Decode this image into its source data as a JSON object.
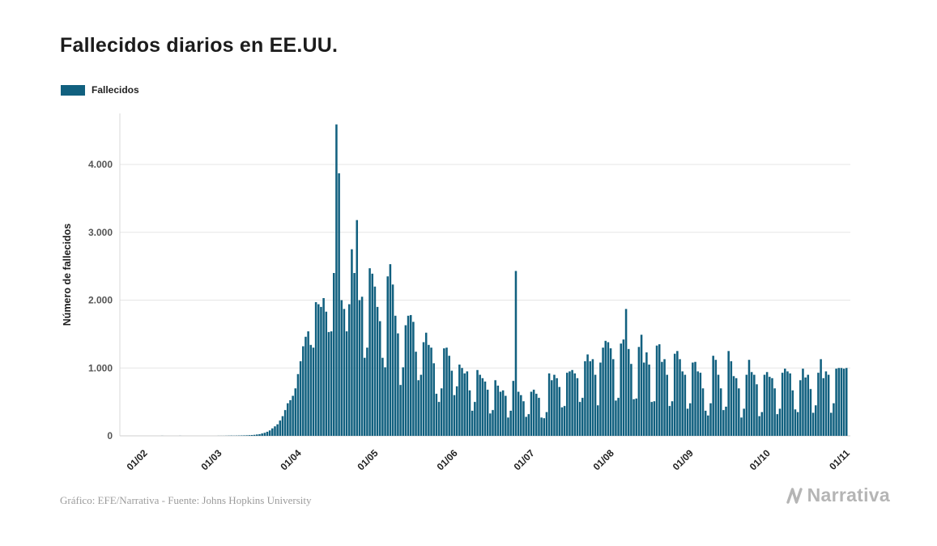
{
  "page": {
    "title": "Fallecidos diarios en EE.UU.",
    "footer_credit": "Gráfico: EFE/Narrativa - Fuente: Johns Hopkins University",
    "brand": "Narrativa"
  },
  "legend": {
    "label": "Fallecidos",
    "color": "#11607f"
  },
  "chart_data": {
    "type": "bar",
    "title": "Fallecidos diarios en EE.UU.",
    "series_name": "Fallecidos",
    "xlabel": "",
    "ylabel": "Número de fallecidos",
    "ylim": [
      0,
      4600
    ],
    "grid": true,
    "legend_position": "top-left",
    "bar_color": "#11607f",
    "start_date": "22/01/2020",
    "x_tick_format": "dd/mm",
    "y_ticks": [
      {
        "value": 0,
        "label": "0"
      },
      {
        "value": 1000,
        "label": "1.000"
      },
      {
        "value": 2000,
        "label": "2.000"
      },
      {
        "value": 3000,
        "label": "3.000"
      },
      {
        "value": 4000,
        "label": "4.000"
      }
    ],
    "x_ticks": [
      {
        "label": "01/02",
        "day": 10
      },
      {
        "label": "01/03",
        "day": 39
      },
      {
        "label": "01/04",
        "day": 70
      },
      {
        "label": "01/05",
        "day": 100
      },
      {
        "label": "01/06",
        "day": 131
      },
      {
        "label": "01/07",
        "day": 161
      },
      {
        "label": "01/08",
        "day": 192
      },
      {
        "label": "01/09",
        "day": 223
      },
      {
        "label": "01/10",
        "day": 253
      },
      {
        "label": "01/11",
        "day": 284
      }
    ],
    "values": [
      0,
      0,
      0,
      0,
      0,
      0,
      0,
      0,
      0,
      0,
      0,
      0,
      0,
      0,
      0,
      0,
      1,
      0,
      0,
      0,
      0,
      0,
      0,
      1,
      0,
      0,
      0,
      0,
      0,
      0,
      0,
      0,
      0,
      0,
      0,
      0,
      0,
      0,
      1,
      1,
      1,
      2,
      3,
      4,
      3,
      4,
      5,
      6,
      7,
      8,
      10,
      12,
      15,
      20,
      25,
      35,
      45,
      60,
      80,
      110,
      140,
      170,
      225,
      290,
      380,
      480,
      525,
      590,
      700,
      910,
      1100,
      1320,
      1460,
      1540,
      1340,
      1300,
      1970,
      1940,
      1900,
      2030,
      1830,
      1530,
      1540,
      2400,
      4590,
      3870,
      2000,
      1870,
      1540,
      1940,
      2750,
      2400,
      3180,
      2000,
      2050,
      1150,
      1300,
      2470,
      2390,
      2200,
      1900,
      1690,
      1150,
      1010,
      2350,
      2530,
      2230,
      1770,
      1510,
      750,
      1010,
      1630,
      1770,
      1780,
      1680,
      1240,
      820,
      900,
      1380,
      1520,
      1340,
      1300,
      1070,
      620,
      500,
      700,
      1290,
      1300,
      1180,
      960,
      600,
      730,
      1050,
      1000,
      920,
      950,
      670,
      370,
      500,
      970,
      900,
      850,
      800,
      680,
      330,
      380,
      820,
      740,
      650,
      670,
      590,
      270,
      370,
      810,
      2430,
      650,
      600,
      510,
      280,
      320,
      650,
      680,
      620,
      560,
      270,
      260,
      350,
      920,
      820,
      900,
      850,
      720,
      420,
      440,
      930,
      950,
      970,
      920,
      850,
      500,
      560,
      1100,
      1200,
      1100,
      1130,
      900,
      450,
      1080,
      1300,
      1400,
      1380,
      1290,
      1130,
      520,
      560,
      1360,
      1420,
      1870,
      1280,
      1060,
      540,
      550,
      1310,
      1490,
      1080,
      1230,
      1050,
      500,
      510,
      1330,
      1350,
      1090,
      1130,
      900,
      440,
      510,
      1210,
      1250,
      1130,
      950,
      900,
      400,
      480,
      1080,
      1090,
      950,
      930,
      700,
      370,
      300,
      480,
      1180,
      1120,
      900,
      700,
      380,
      430,
      1250,
      1100,
      880,
      850,
      700,
      270,
      400,
      900,
      1120,
      940,
      900,
      760,
      290,
      350,
      900,
      940,
      870,
      850,
      700,
      320,
      400,
      930,
      990,
      950,
      920,
      670,
      390,
      350,
      820,
      990,
      860,
      900,
      690,
      340,
      450,
      930,
      1130,
      850,
      950,
      900,
      340,
      480,
      990,
      1000,
      1000,
      990,
      1000
    ]
  }
}
